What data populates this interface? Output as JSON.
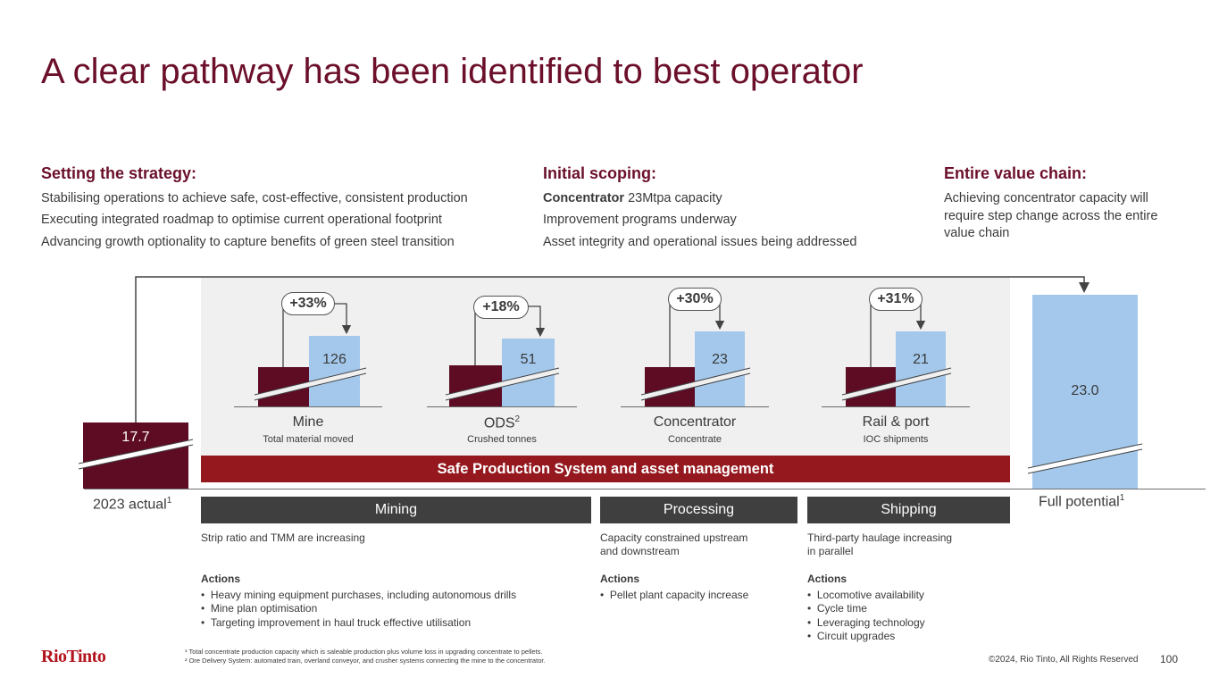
{
  "title": "A clear pathway has been identified to best operator",
  "columns": [
    {
      "heading": "Setting the strategy:",
      "lines": [
        "Stabilising operations to achieve safe, cost-effective, consistent production",
        "Executing integrated roadmap to optimise current operational footprint",
        "Advancing growth optionality to capture benefits of green steel transition"
      ]
    },
    {
      "heading": "Initial scoping:",
      "lines_bold_prefix": "Concentrator",
      "lines": [
        "23Mtpa capacity",
        "Improvement programs underway",
        "Asset integrity and operational issues being addressed"
      ]
    },
    {
      "heading": "Entire value chain:",
      "lines": [
        "Achieving concentrator capacity will",
        "require step change across the entire",
        "value chain"
      ]
    }
  ],
  "chart_data": {
    "type": "bar",
    "start": {
      "label": "2023 actual",
      "sup": "1",
      "value": "17.7"
    },
    "end": {
      "label": "Full potential",
      "sup": "1",
      "value": "23.0"
    },
    "stages": [
      {
        "name": "Mine",
        "sup": "",
        "sub": "Total material moved",
        "value": "126",
        "change": "+33%"
      },
      {
        "name": "ODS",
        "sup": "2",
        "sub": "Crushed tonnes",
        "value": "51",
        "change": "+18%"
      },
      {
        "name": "Concentrator",
        "sup": "",
        "sub": "Concentrate",
        "value": "23",
        "change": "+30%"
      },
      {
        "name": "Rail & port",
        "sup": "",
        "sub": "IOC shipments",
        "value": "21",
        "change": "+31%"
      }
    ],
    "banner": "Safe Production System and asset management"
  },
  "categories": [
    {
      "label": "Mining",
      "desc": [
        "Strip ratio and TMM are increasing"
      ],
      "actions_label": "Actions",
      "actions": [
        "Heavy mining equipment purchases, including autonomous drills",
        "Mine plan optimisation",
        "Targeting improvement in haul truck effective utilisation"
      ]
    },
    {
      "label": "Processing",
      "desc": [
        "Capacity constrained upstream",
        "and downstream"
      ],
      "actions_label": "Actions",
      "actions": [
        "Pellet plant capacity increase"
      ]
    },
    {
      "label": "Shipping",
      "desc": [
        "Third-party haulage increasing",
        "in parallel"
      ],
      "actions_label": "Actions",
      "actions": [
        "Locomotive availability",
        "Cycle time",
        "Leveraging technology",
        "Circuit upgrades"
      ]
    }
  ],
  "footer": {
    "logo": "RioTinto",
    "note1": "¹ Total concentrate production capacity which is saleable production plus volume loss in upgrading concentrate to pellets.",
    "note2": "² Ore Delivery System: automated train, overland conveyor, and crusher systems connecting the mine to the concentrator.",
    "copyright": "©2024, Rio Tinto, All Rights Reserved",
    "page_number": "100"
  },
  "colors": {
    "maroon": "#5e0b24",
    "light_blue": "#a3c8ec",
    "banner_red": "#94181e",
    "title": "#6b0f2a",
    "dark_grey": "#3f3f3f"
  }
}
